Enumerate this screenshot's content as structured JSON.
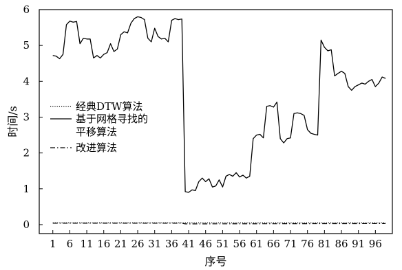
{
  "chart_data": {
    "type": "line",
    "xlabel": "序号",
    "ylabel": "时间/s",
    "xlim": [
      -3,
      101
    ],
    "ylim": [
      -0.25,
      6
    ],
    "x_ticks": [
      1,
      6,
      11,
      16,
      21,
      26,
      31,
      36,
      41,
      46,
      51,
      56,
      61,
      66,
      71,
      76,
      81,
      86,
      91,
      96
    ],
    "y_ticks": [
      0,
      1,
      2,
      3,
      4,
      5,
      6
    ],
    "legend_position": "left-middle",
    "series": [
      {
        "name": "经典DTW算法",
        "style": "dotted",
        "x": [
          1,
          50,
          99
        ],
        "values": [
          0.05,
          0.05,
          0.05
        ]
      },
      {
        "name": "基于网格寻找的\n平移算法",
        "style": "solid",
        "x": [
          1,
          2,
          3,
          4,
          5,
          6,
          7,
          8,
          9,
          10,
          11,
          12,
          13,
          14,
          15,
          16,
          17,
          18,
          19,
          20,
          21,
          22,
          23,
          24,
          25,
          26,
          27,
          28,
          29,
          30,
          31,
          32,
          33,
          34,
          35,
          36,
          37,
          38,
          39,
          40,
          41,
          42,
          43,
          44,
          45,
          46,
          47,
          48,
          49,
          50,
          51,
          52,
          53,
          54,
          55,
          56,
          57,
          58,
          59,
          60,
          61,
          62,
          63,
          64,
          65,
          66,
          67,
          68,
          69,
          70,
          71,
          72,
          73,
          74,
          75,
          76,
          77,
          78,
          79,
          80,
          81,
          82,
          83,
          84,
          85,
          86,
          87,
          88,
          89,
          90,
          91,
          92,
          93,
          94,
          95,
          96,
          97,
          98,
          99
        ],
        "values": [
          4.72,
          4.7,
          4.63,
          4.75,
          5.58,
          5.68,
          5.65,
          5.67,
          5.05,
          5.2,
          5.18,
          5.18,
          4.65,
          4.72,
          4.65,
          4.75,
          4.8,
          5.05,
          4.83,
          4.9,
          5.3,
          5.38,
          5.35,
          5.62,
          5.75,
          5.8,
          5.78,
          5.72,
          5.2,
          5.1,
          5.48,
          5.25,
          5.18,
          5.2,
          5.1,
          5.7,
          5.75,
          5.72,
          5.74,
          0.92,
          0.9,
          0.97,
          0.95,
          1.2,
          1.3,
          1.2,
          1.28,
          1.05,
          1.08,
          1.25,
          1.05,
          1.35,
          1.4,
          1.35,
          1.45,
          1.33,
          1.38,
          1.3,
          1.35,
          2.4,
          2.5,
          2.52,
          2.42,
          3.3,
          3.32,
          3.28,
          3.42,
          2.4,
          2.28,
          2.4,
          2.42,
          3.1,
          3.12,
          3.1,
          3.05,
          2.65,
          2.55,
          2.52,
          2.5,
          5.15,
          4.95,
          4.85,
          4.88,
          4.15,
          4.22,
          4.28,
          4.22,
          3.85,
          3.75,
          3.85,
          3.9,
          3.95,
          3.92,
          4.0,
          4.05,
          3.85,
          3.95,
          4.12,
          4.08
        ]
      },
      {
        "name": "改进算法",
        "style": "dash-dot",
        "x": [
          1,
          39,
          40,
          99
        ],
        "values": [
          0.04,
          0.04,
          0.02,
          0.03
        ]
      }
    ]
  }
}
